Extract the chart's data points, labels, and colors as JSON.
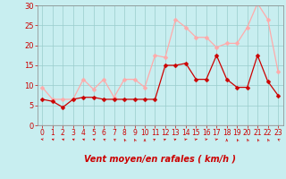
{
  "x": [
    0,
    1,
    2,
    3,
    4,
    5,
    6,
    7,
    8,
    9,
    10,
    11,
    12,
    13,
    14,
    15,
    16,
    17,
    18,
    19,
    20,
    21,
    22,
    23
  ],
  "wind_avg": [
    6.5,
    6.0,
    4.5,
    6.5,
    7.0,
    7.0,
    6.5,
    6.5,
    6.5,
    6.5,
    6.5,
    6.5,
    15.0,
    15.0,
    15.5,
    11.5,
    11.5,
    17.5,
    11.5,
    9.5,
    9.5,
    17.5,
    11.0,
    7.5
  ],
  "wind_gust": [
    9.5,
    6.5,
    6.5,
    6.5,
    11.5,
    9.0,
    11.5,
    7.0,
    11.5,
    11.5,
    9.5,
    17.5,
    17.0,
    26.5,
    24.5,
    22.0,
    22.0,
    19.5,
    20.5,
    20.5,
    24.5,
    30.5,
    26.5,
    13.5
  ],
  "color_avg": "#cc0000",
  "color_gust": "#ffaaaa",
  "bg_color": "#c8eef0",
  "grid_color": "#99cccc",
  "axis_color": "#cc0000",
  "spine_color": "#888888",
  "ylim": [
    0,
    30
  ],
  "yticks": [
    0,
    5,
    10,
    15,
    20,
    25,
    30
  ],
  "xlabel": "Vent moyen/en rafales ( km/h )",
  "marker": "D",
  "markersize": 2.5,
  "arrow_angles": [
    225,
    210,
    210,
    210,
    210,
    210,
    200,
    195,
    185,
    185,
    180,
    160,
    155,
    150,
    145,
    145,
    140,
    145,
    180,
    185,
    185,
    185,
    185,
    195
  ]
}
